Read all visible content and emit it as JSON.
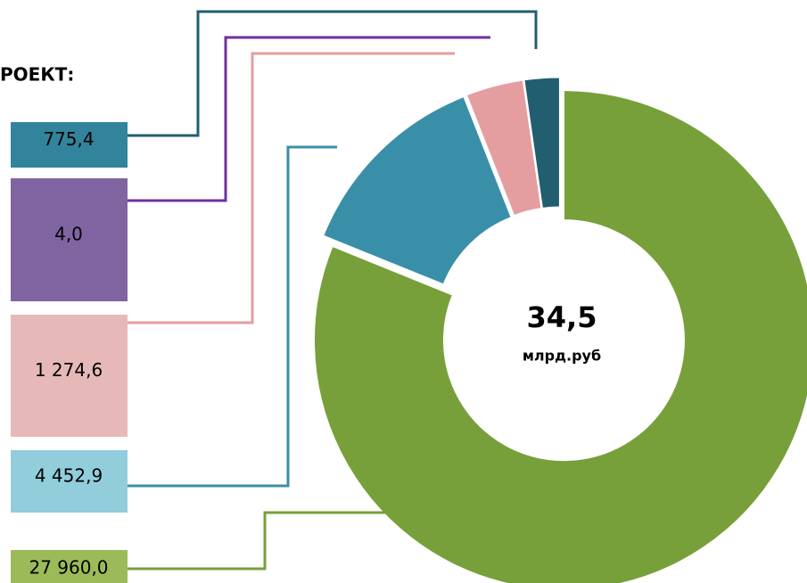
{
  "chart_data": {
    "type": "donut",
    "title": "РОЕКТ:",
    "values": [
      27960.0,
      4452.9,
      1274.6,
      4.0,
      775.4
    ],
    "value_labels": [
      "27 960,0",
      "4 452,9",
      "1 274,6",
      "4,0",
      "775,4"
    ],
    "colors": [
      "#77a03a",
      "#3a8fa8",
      "#e59ea0",
      "#7030a0",
      "#215f70"
    ],
    "label_colors": [
      "#9bbb59",
      "#92cddc",
      "#e6b9b8",
      "#8064a2",
      "#31849b"
    ],
    "center_label": "34,5",
    "center_unit": "млрд.руб"
  }
}
